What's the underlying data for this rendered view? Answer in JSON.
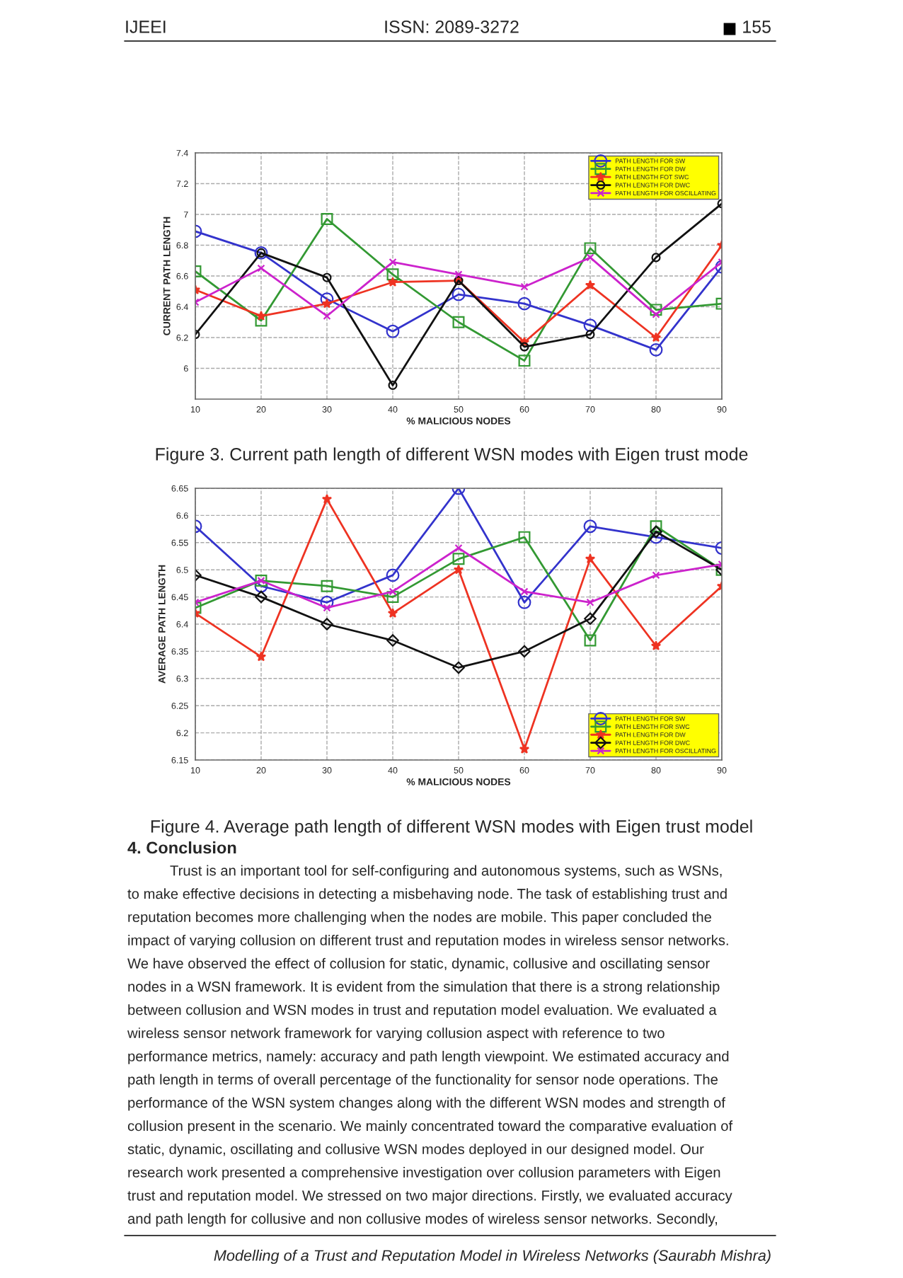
{
  "chart_data": [
    {
      "type": "line",
      "xlabel": "% MALICIOUS NODES",
      "ylabel": "CURRENT PATH LENGTH",
      "x": [
        10,
        20,
        30,
        40,
        50,
        60,
        70,
        80,
        90
      ],
      "xlim": [
        10,
        90
      ],
      "xticks": [
        10,
        20,
        30,
        40,
        50,
        60,
        70,
        80,
        90
      ],
      "ylim": [
        5.8,
        7.4
      ],
      "yticks": [
        6,
        6.2,
        6.4,
        6.6,
        6.8,
        7,
        7.2,
        7.4
      ],
      "grid": true,
      "legend": "top right",
      "line_style": "solid",
      "series": [
        {
          "name": "PATH LENGTH FOR SW",
          "color": "#3333cc",
          "marker": "circle",
          "values": [
            6.89,
            6.75,
            6.45,
            6.24,
            6.48,
            6.42,
            6.28,
            6.12,
            6.66
          ]
        },
        {
          "name": "PATH LENGTH FOR DW",
          "color": "#339933",
          "marker": "square",
          "values": [
            6.63,
            6.31,
            6.97,
            6.61,
            6.3,
            6.05,
            6.78,
            6.38,
            6.42
          ]
        },
        {
          "name": "PATH LENGTH FOT SWC",
          "color": "#ee3322",
          "marker": "star",
          "values": [
            6.51,
            6.34,
            6.42,
            6.56,
            6.57,
            6.17,
            6.54,
            6.2,
            6.8
          ]
        },
        {
          "name": "PATH LENGTH FOR DWC",
          "color": "#111111",
          "marker": "circle",
          "values": [
            6.22,
            6.75,
            6.59,
            5.89,
            6.57,
            6.14,
            6.22,
            6.72,
            7.07
          ]
        },
        {
          "name": "PATH LENGTH FOR OSCILLATING",
          "color": "#cc22cc",
          "marker": "cross",
          "values": [
            6.43,
            6.65,
            6.34,
            6.69,
            6.61,
            6.53,
            6.72,
            6.35,
            6.69
          ]
        }
      ],
      "annotations": [
        "Figure 3. Current path length of different WSN modes with Eigen trust mode"
      ]
    },
    {
      "type": "line",
      "xlabel": "% MALICIOUS NODES",
      "ylabel": "AVERAGE PATH LENGTH",
      "x": [
        10,
        20,
        30,
        40,
        50,
        60,
        70,
        80,
        90
      ],
      "xlim": [
        10,
        90
      ],
      "xticks": [
        10,
        20,
        30,
        40,
        50,
        60,
        70,
        80,
        90
      ],
      "ylim": [
        6.15,
        6.65
      ],
      "yticks": [
        6.15,
        6.2,
        6.25,
        6.3,
        6.35,
        6.4,
        6.45,
        6.5,
        6.55,
        6.6,
        6.65
      ],
      "grid": true,
      "legend": "bottom right",
      "line_style": "solid",
      "series": [
        {
          "name": "PATH LENGTH FOR SW",
          "color": "#3333cc",
          "marker": "circle",
          "values": [
            6.58,
            6.47,
            6.44,
            6.49,
            6.65,
            6.44,
            6.58,
            6.56,
            6.54
          ]
        },
        {
          "name": "PATH LENGTH FOR SWC",
          "color": "#339933",
          "marker": "square",
          "values": [
            6.43,
            6.48,
            6.47,
            6.45,
            6.52,
            6.56,
            6.37,
            6.58,
            6.5
          ]
        },
        {
          "name": "PATH LENGTH FOR DW",
          "color": "#ee3322",
          "marker": "star",
          "values": [
            6.42,
            6.34,
            6.63,
            6.42,
            6.5,
            6.17,
            6.52,
            6.36,
            6.47
          ]
        },
        {
          "name": "PATH LENGTH FOR DWC",
          "color": "#111111",
          "marker": "diamond",
          "values": [
            6.49,
            6.45,
            6.4,
            6.37,
            6.32,
            6.35,
            6.41,
            6.57,
            6.5
          ]
        },
        {
          "name": "PATH LENGTH FOR OSCILLATING",
          "color": "#cc22cc",
          "marker": "cross",
          "values": [
            6.44,
            6.48,
            6.43,
            6.46,
            6.54,
            6.46,
            6.44,
            6.49,
            6.51
          ]
        }
      ],
      "annotations": [
        "Figure 4. Average path length of different WSN modes with Eigen trust model"
      ]
    },
    {
      "type": "other",
      "title": "4. Conclusion",
      "annotations": [
        "IJEEI",
        "ISSN: 2089-3272",
        "155",
        "Trust is an important tool for self-configuring and autonomous systems, such as WSNs,",
        "to make effective decisions in detecting a misbehaving node. The task of establishing trust and",
        "reputation becomes more challenging when the nodes are mobile. This paper concluded the",
        "impact of varying collusion on different trust and reputation modes in wireless sensor networks.",
        "We have observed the effect of collusion for static, dynamic, collusive and oscillating sensor",
        "nodes in a WSN framework. It is evident from the simulation that there is a strong relationship",
        "between collusion and WSN modes in trust and reputation model evaluation. We evaluated a",
        "wireless sensor network framework for varying collusion aspect with reference to two",
        "performance metrics, namely: accuracy and path length viewpoint. We estimated accuracy and",
        "path length in terms of overall percentage of the functionality for sensor node operations. The",
        "performance of the WSN system changes along with the different WSN modes and strength of",
        "collusion present in the scenario. We mainly concentrated toward the comparative evaluation of",
        "static, dynamic, oscillating and collusive WSN modes deployed in our designed model. Our",
        "research work presented a comprehensive investigation over collusion parameters with Eigen",
        "trust and reputation model. We stressed on two major directions. Firstly, we evaluated accuracy",
        "and path length for collusive and non collusive modes of wireless sensor networks. Secondly,",
        "Modelling of a Trust and Reputation Model in Wireless Networks (Saurabh Mishra)"
      ]
    }
  ]
}
